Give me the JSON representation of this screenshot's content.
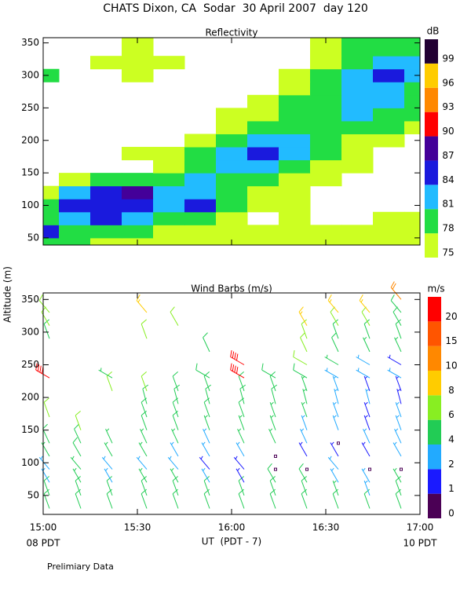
{
  "header": {
    "title": "CHATS Dixon, CA  Sodar  30 April 2007  day 120"
  },
  "footer": {
    "note": "Prelimiary Data"
  },
  "chart_data": [
    {
      "type": "contour",
      "title": "Reflectivity",
      "x": [
        900,
        910,
        920,
        930,
        940,
        950,
        960,
        970,
        980,
        990,
        1000,
        1010,
        1020
      ],
      "y": [
        40,
        60,
        80,
        100,
        120,
        140,
        160,
        180,
        200,
        220,
        240,
        260,
        280,
        300,
        320,
        340
      ],
      "z": [
        [
          80,
          79,
          77,
          77,
          77,
          77,
          77,
          76,
          76,
          76,
          76,
          76,
          76
        ],
        [
          85,
          80,
          79,
          78,
          77,
          77,
          77,
          77,
          76,
          76,
          76,
          76,
          76
        ],
        [
          80,
          83,
          85,
          82,
          80,
          80,
          77,
          null,
          76,
          null,
          null,
          77,
          76
        ],
        [
          79,
          84,
          86,
          86,
          83,
          85,
          79,
          77,
          76,
          null,
          null,
          null,
          null
        ],
        [
          77,
          82,
          85,
          88,
          83,
          81,
          79,
          77,
          76,
          null,
          null,
          null,
          null
        ],
        [
          null,
          77,
          79,
          80,
          79,
          81,
          79,
          78,
          77,
          76,
          null,
          null,
          null
        ],
        [
          null,
          null,
          null,
          null,
          76,
          79,
          82,
          82,
          79,
          77,
          76,
          null,
          null
        ],
        [
          null,
          null,
          null,
          76,
          76,
          78,
          82,
          85,
          81,
          78,
          76,
          null,
          null
        ],
        [
          null,
          null,
          null,
          null,
          null,
          77,
          80,
          83,
          82,
          80,
          77,
          76,
          null
        ],
        [
          null,
          null,
          null,
          null,
          null,
          null,
          77,
          79,
          79,
          80,
          79,
          78,
          77
        ],
        [
          null,
          null,
          null,
          null,
          null,
          null,
          76,
          77,
          78,
          80,
          81,
          80,
          78
        ],
        [
          null,
          null,
          null,
          null,
          null,
          null,
          null,
          76,
          78,
          80,
          82,
          81,
          79
        ],
        [
          null,
          null,
          null,
          null,
          null,
          null,
          null,
          null,
          77,
          79,
          83,
          83,
          80
        ],
        [
          78,
          null,
          null,
          76,
          null,
          null,
          null,
          null,
          76,
          79,
          82,
          85,
          83
        ],
        [
          null,
          null,
          76,
          76,
          76,
          null,
          null,
          null,
          null,
          77,
          80,
          83,
          82
        ],
        [
          null,
          null,
          null,
          76,
          null,
          null,
          null,
          null,
          null,
          76,
          78,
          79,
          78
        ]
      ],
      "xlim": [
        900,
        1020
      ],
      "ylim": [
        39,
        358
      ],
      "xticks": [
        900,
        930,
        960,
        990,
        1020
      ],
      "yticks": [
        50,
        100,
        150,
        200,
        250,
        300,
        350
      ],
      "colorbar": {
        "label": "dB",
        "levels": [
          75,
          78,
          81,
          84,
          87,
          90,
          93,
          96,
          99
        ],
        "colors": [
          "#ccff22",
          "#22dd44",
          "#22bbff",
          "#1a1add",
          "#440099",
          "#ff0000",
          "#ff8800",
          "#ffcc00",
          "#220033"
        ]
      }
    },
    {
      "type": "barbs",
      "title": "Wind Barbs (m/s)",
      "ylabel": "Altitude (m)",
      "xlabel": "UT  (PDT - 7)",
      "x": [
        902,
        912,
        922,
        933,
        943,
        953,
        964,
        974,
        984,
        994,
        1004,
        1014
      ],
      "altitudes": [
        30,
        50,
        70,
        90,
        110,
        130,
        150,
        170,
        190,
        210,
        230,
        250,
        270,
        290,
        310,
        330,
        350
      ],
      "speed": [
        [
          5,
          5,
          5,
          5,
          5,
          5,
          5,
          5,
          5,
          5,
          5,
          5
        ],
        [
          5,
          5,
          5,
          5,
          5,
          5,
          5,
          5,
          5,
          4,
          3,
          5
        ],
        [
          3,
          4,
          3,
          4,
          4,
          2,
          1.5,
          5,
          5,
          3,
          2,
          4
        ],
        [
          3,
          4,
          3,
          3,
          3,
          1.5,
          1.5,
          0.5,
          0.5,
          2,
          0.5,
          0.5
        ],
        [
          4,
          5,
          4,
          4,
          3,
          3,
          3,
          0.5,
          1.5,
          1.5,
          1.5,
          3
        ],
        [
          5,
          5,
          4,
          4,
          4,
          3,
          4,
          4,
          3,
          0.5,
          2,
          3
        ],
        [
          null,
          6,
          null,
          5,
          5,
          4,
          4,
          4,
          3,
          3,
          1.5,
          3
        ],
        [
          6,
          null,
          null,
          5,
          5,
          5,
          5,
          4,
          4,
          3,
          1.5,
          2
        ],
        [
          null,
          null,
          null,
          5,
          5,
          5,
          5,
          5,
          4,
          3,
          3,
          1.5
        ],
        [
          null,
          null,
          6,
          6,
          5,
          5,
          5,
          5,
          4,
          3,
          1.5,
          1.5
        ],
        [
          20,
          null,
          4,
          null,
          null,
          5,
          20,
          5,
          5,
          3,
          3,
          3
        ],
        [
          null,
          null,
          null,
          null,
          null,
          null,
          20,
          null,
          6,
          4,
          3,
          1.5
        ],
        [
          null,
          null,
          null,
          null,
          null,
          5,
          null,
          null,
          6,
          5,
          4,
          4
        ],
        [
          5,
          null,
          null,
          6,
          null,
          null,
          null,
          null,
          6,
          5,
          5,
          5
        ],
        [
          6,
          null,
          null,
          null,
          6,
          null,
          null,
          null,
          8,
          6,
          6,
          5
        ],
        [
          6,
          null,
          null,
          8,
          null,
          null,
          null,
          null,
          null,
          8,
          8,
          5
        ],
        [
          null,
          null,
          null,
          null,
          null,
          null,
          null,
          null,
          null,
          null,
          null,
          10
        ]
      ],
      "direction": [
        340,
        340,
        330,
        320,
        330,
        335,
        340,
        340,
        345,
        340,
        300,
        300,
        335,
        340,
        330,
        320,
        320
      ],
      "xlim": [
        900,
        1020
      ],
      "ylim": [
        21,
        360
      ],
      "xticks": [
        {
          "value": 900,
          "label": "15:00"
        },
        {
          "value": 930,
          "label": "15:30"
        },
        {
          "value": 960,
          "label": "16:00"
        },
        {
          "value": 990,
          "label": "16:30"
        },
        {
          "value": 1020,
          "label": "17:00"
        }
      ],
      "xticks_local": [
        {
          "value": 900,
          "label": "08 PDT"
        },
        {
          "value": 1020,
          "label": "10 PDT"
        }
      ],
      "yticks": [
        50,
        100,
        150,
        200,
        250,
        300,
        350
      ],
      "colorbar": {
        "label": "m/s",
        "levels": [
          0,
          1,
          2,
          4,
          6,
          8,
          10,
          15,
          20
        ],
        "colors": [
          "#4b0055",
          "#1a1aff",
          "#22aaff",
          "#22cc55",
          "#88ee22",
          "#ffcc00",
          "#ff8800",
          "#ff5500",
          "#ff0000"
        ]
      }
    }
  ]
}
